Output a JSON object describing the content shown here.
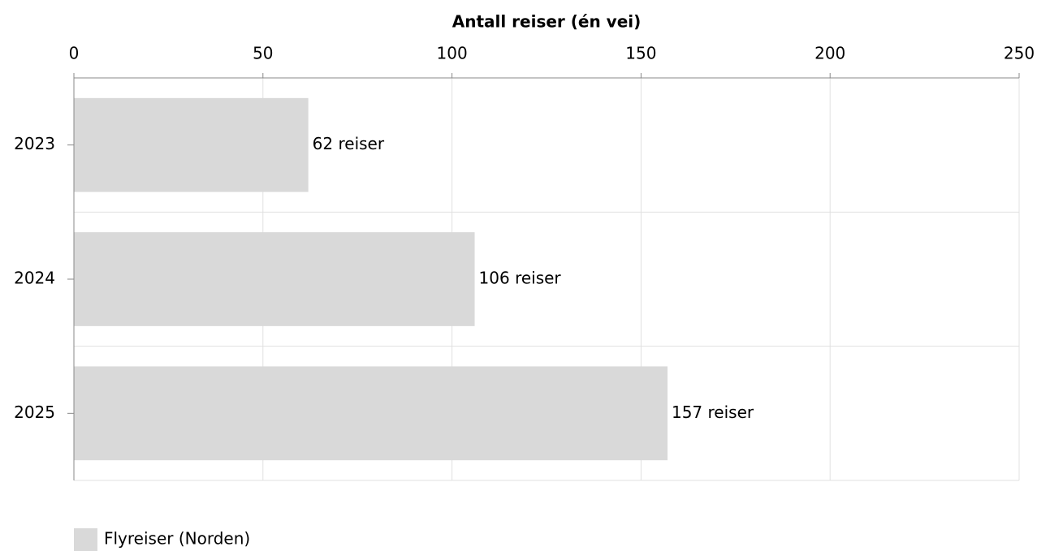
{
  "chart_data": {
    "type": "bar",
    "orientation": "horizontal",
    "x_axis_label": "Antall reiser (én vei)",
    "categories": [
      "2023",
      "2024",
      "2025"
    ],
    "series": [
      {
        "name": "Flyreiser (Norden)",
        "color": "#d9d9d9",
        "values": [
          62,
          106,
          157
        ],
        "value_labels": [
          "62 reiser",
          "106 reiser",
          "157 reiser"
        ]
      }
    ],
    "xlim": [
      0,
      250
    ],
    "xticks": [
      0,
      50,
      100,
      150,
      200,
      250
    ],
    "grid": true,
    "legend": "bottom-left"
  }
}
